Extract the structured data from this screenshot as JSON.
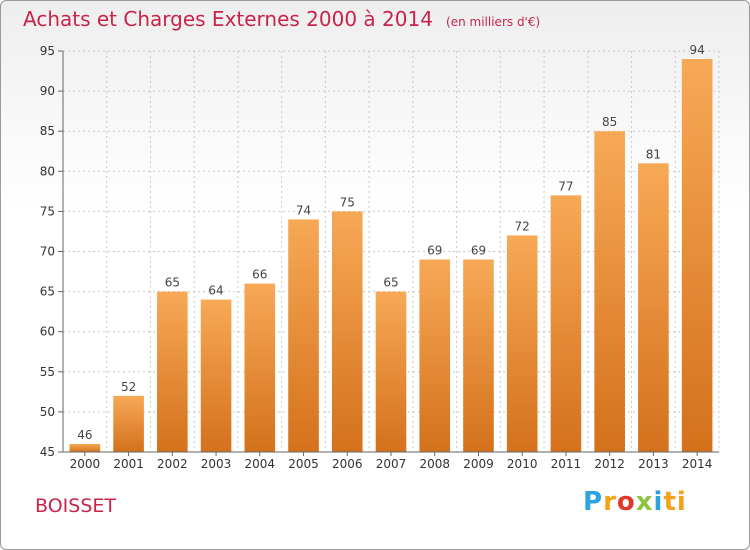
{
  "header": {
    "title": "Achats et Charges Externes 2000 à 2014",
    "unit": "(en milliers d'€)"
  },
  "footer": {
    "commune": "BOISSET",
    "logo": "Proxiti"
  },
  "colors": {
    "title": "#c8244a",
    "bar_top": "#f7a956",
    "bar_bottom": "#d4711c",
    "grid": "#c8c8c8"
  },
  "chart_data": {
    "type": "bar",
    "title": "Achats et Charges Externes 2000 à 2014",
    "xlabel": "",
    "ylabel": "",
    "categories": [
      "2000",
      "2001",
      "2002",
      "2003",
      "2004",
      "2005",
      "2006",
      "2007",
      "2008",
      "2009",
      "2010",
      "2011",
      "2012",
      "2013",
      "2014"
    ],
    "values": [
      46,
      52,
      65,
      64,
      66,
      74,
      75,
      65,
      69,
      69,
      72,
      77,
      85,
      81,
      94
    ],
    "ylim": [
      45,
      95
    ],
    "yticks": [
      45,
      50,
      55,
      60,
      65,
      70,
      75,
      80,
      85,
      90,
      95
    ],
    "grid": true,
    "legend": "none"
  }
}
